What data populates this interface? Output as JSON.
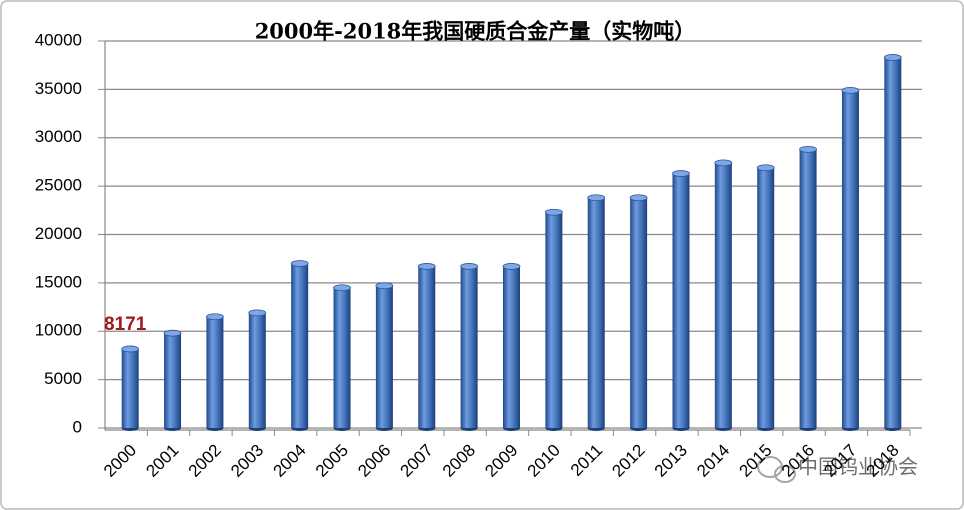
{
  "chart_data": {
    "type": "bar",
    "title": "2000年-2018年我国硬质合金产量（实物吨）",
    "categories": [
      "2000",
      "2001",
      "2002",
      "2003",
      "2004",
      "2005",
      "2006",
      "2007",
      "2008",
      "2009",
      "2010",
      "2011",
      "2012",
      "2013",
      "2014",
      "2015",
      "2016",
      "2017",
      "2018"
    ],
    "values": [
      8171,
      9800,
      11500,
      11900,
      17000,
      14500,
      14700,
      16700,
      16700,
      16700,
      22300,
      23800,
      23800,
      26300,
      27400,
      26900,
      28800,
      34900,
      38300
    ],
    "color": "#3f6fb5",
    "data_label_color": "#a0191c",
    "ylim": [
      0,
      40000
    ],
    "yticks": [
      0,
      5000,
      10000,
      15000,
      20000,
      25000,
      30000,
      35000,
      40000
    ],
    "grid": true,
    "watermark": "中国钨业协会"
  }
}
